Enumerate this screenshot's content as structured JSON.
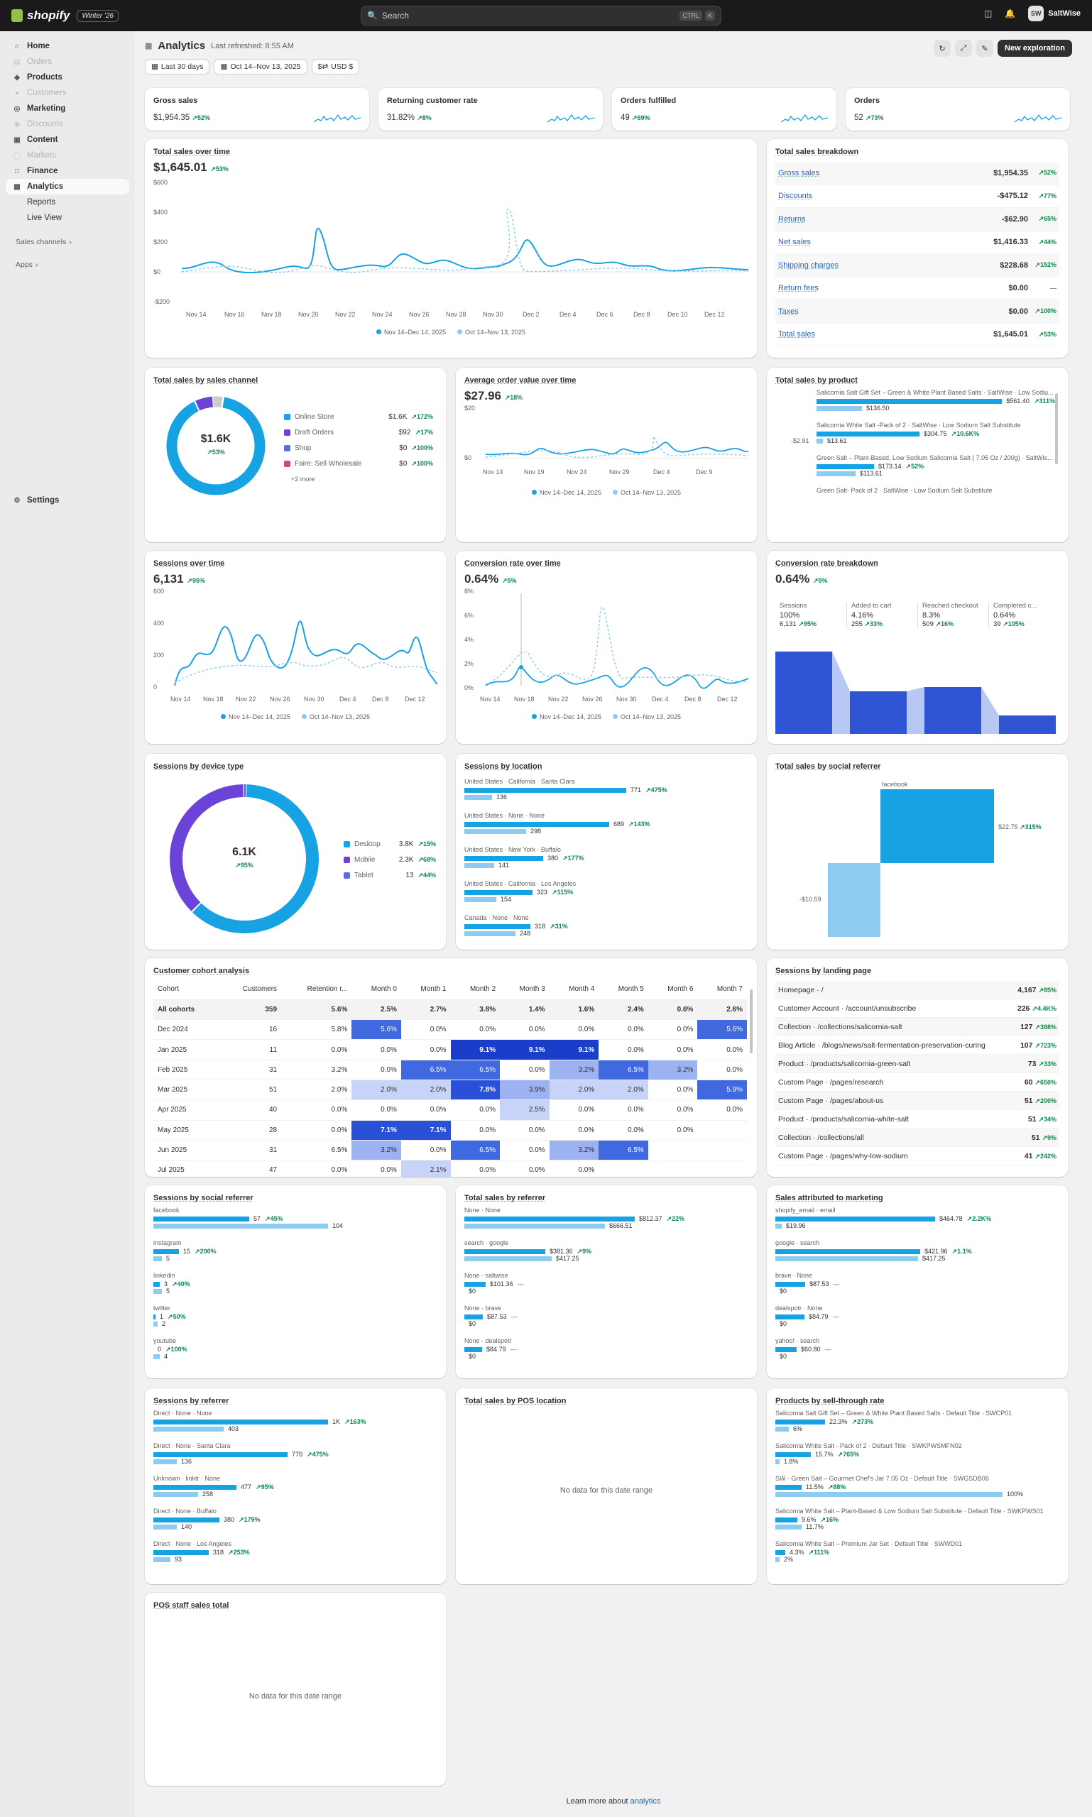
{
  "topbar": {
    "brand": "shopify",
    "edition": "Winter '26",
    "search_placeholder": "Search",
    "kbd1": "CTRL",
    "kbd2": "K",
    "store": "SaltWise",
    "store_initials": "SW"
  },
  "sidebar": {
    "items": [
      {
        "label": "Home",
        "icon": "home-icon",
        "dim": false
      },
      {
        "label": "Orders",
        "icon": "orders-icon",
        "dim": true
      },
      {
        "label": "Products",
        "icon": "tag-icon",
        "dim": false
      },
      {
        "label": "Customers",
        "icon": "person-icon",
        "dim": true
      },
      {
        "label": "Marketing",
        "icon": "target-icon",
        "dim": false
      },
      {
        "label": "Discounts",
        "icon": "discount-icon",
        "dim": true
      },
      {
        "label": "Content",
        "icon": "content-icon",
        "dim": false
      },
      {
        "label": "Markets",
        "icon": "globe-icon",
        "dim": true
      },
      {
        "label": "Finance",
        "icon": "bank-icon",
        "dim": false
      },
      {
        "label": "Analytics",
        "icon": "chart-icon",
        "dim": false,
        "active": true
      }
    ],
    "sub": [
      "Reports",
      "Live View"
    ],
    "sales_channels": "Sales channels",
    "apps": "Apps",
    "settings": "Settings"
  },
  "header": {
    "title": "Analytics",
    "refreshed": "Last refreshed: 8:55 AM",
    "new_exploration": "New exploration",
    "filter_period": "Last 30 days",
    "filter_compare": "Oct 14–Nov 13, 2025",
    "filter_currency": "USD $"
  },
  "kpis": [
    {
      "label": "Gross sales",
      "value": "$1,954.35",
      "change": "52%"
    },
    {
      "label": "Returning customer rate",
      "value": "31.82%",
      "change": "8%"
    },
    {
      "label": "Orders fulfilled",
      "value": "49",
      "change": "69%"
    },
    {
      "label": "Orders",
      "value": "52",
      "change": "73%"
    }
  ],
  "total_sales": {
    "title": "Total sales over time",
    "value": "$1,645.01",
    "change": "53%",
    "legend_current": "Nov 14–Dec 14, 2025",
    "legend_previous": "Oct 14–Nov 13, 2025"
  },
  "breakdown": {
    "title": "Total sales breakdown",
    "rows": [
      {
        "name": "Gross sales",
        "value": "$1,954.35",
        "change": "52%"
      },
      {
        "name": "Discounts",
        "value": "-$475.12",
        "change": "77%"
      },
      {
        "name": "Returns",
        "value": "-$62.90",
        "change": "65%"
      },
      {
        "name": "Net sales",
        "value": "$1,416.33",
        "change": "44%"
      },
      {
        "name": "Shipping charges",
        "value": "$228.68",
        "change": "152%"
      },
      {
        "name": "Return fees",
        "value": "$0.00",
        "change": "—"
      },
      {
        "name": "Taxes",
        "value": "$0.00",
        "change": "100%"
      },
      {
        "name": "Total sales",
        "value": "$1,645.01",
        "change": "53%"
      }
    ]
  },
  "by_channel": {
    "title": "Total sales by sales channel",
    "center": "$1.6K",
    "center_change": "53%",
    "more": "+2 more",
    "rows": [
      {
        "name": "Online Store",
        "value": "$1.6K",
        "change": "172%",
        "color": "#17a3e3"
      },
      {
        "name": "Draft Orders",
        "value": "$92",
        "change": "17%",
        "color": "#6b43d9"
      },
      {
        "name": "Shop",
        "value": "$0",
        "change": "100%",
        "color": "#5b6ee1"
      },
      {
        "name": "Faire: Sell Wholesale",
        "value": "$0",
        "change": "100%",
        "color": "#d1448a"
      }
    ]
  },
  "aov": {
    "title": "Average order value over time",
    "value": "$27.96",
    "change": "18%"
  },
  "by_product": {
    "title": "Total sales by product",
    "neg": "-$2.91",
    "rows": [
      {
        "name": "Salicornia Salt Gift Set – Green & White Plant Based Salts · SaltWise · Low Sodiu...",
        "v1": "$561.40",
        "c1": "311%",
        "v2": "$136.50",
        "w1": 0.92,
        "w2": 0.22
      },
      {
        "name": "Salicornia White Salt -Pack of 2 · SaltWise · Low Sodium Salt Substitute",
        "v1": "$304.75",
        "c1": "10.6K%",
        "v2": "$13.61",
        "w1": 0.5,
        "w2": 0.03
      },
      {
        "name": "Green Salt – Plant-Based, Low Sodium Salicornia Salt ( 7.05 Oz / 200g) · SaltWis...",
        "v1": "$173.14",
        "c1": "52%",
        "v2": "$113.61",
        "w1": 0.28,
        "w2": 0.19
      },
      {
        "name": "Green Salt- Pack of 2 · SaltWise · Low Sodium Salt Substitute",
        "v1": "",
        "c1": "",
        "v2": "",
        "w1": 0,
        "w2": 0
      }
    ]
  },
  "sessions": {
    "title": "Sessions over time",
    "value": "6,131",
    "change": "95%"
  },
  "conversion": {
    "title": "Conversion rate over time",
    "value": "0.64%",
    "change": "5%"
  },
  "funnel": {
    "title": "Conversion rate breakdown",
    "value": "0.64%",
    "change": "5%",
    "steps": [
      {
        "name": "Sessions",
        "pct": "100%",
        "count": "6,131",
        "change": "95%"
      },
      {
        "name": "Added to cart",
        "pct": "4.16%",
        "count": "255",
        "change": "33%"
      },
      {
        "name": "Reached checkout",
        "pct": "8.3%",
        "count": "509",
        "change": "16%"
      },
      {
        "name": "Completed c...",
        "pct": "0.64%",
        "count": "39",
        "change": "105%"
      }
    ]
  },
  "device": {
    "title": "Sessions by device type",
    "center": "6.1K",
    "center_change": "95%",
    "rows": [
      {
        "name": "Desktop",
        "value": "3.8K",
        "change": "15%",
        "color": "#17a3e3"
      },
      {
        "name": "Mobile",
        "value": "2.3K",
        "change": "68%",
        "color": "#6b43d9"
      },
      {
        "name": "Tablet",
        "value": "13",
        "change": "44%",
        "color": "#5b6ee1"
      }
    ]
  },
  "location": {
    "title": "Sessions by location",
    "rows": [
      {
        "name": "United States · California · Santa Clara",
        "v1": "771",
        "c1": "475%",
        "v2": "136",
        "w1": 0.76,
        "w2": 0.13
      },
      {
        "name": "United States · None · None",
        "v1": "689",
        "c1": "143%",
        "v2": "298",
        "w1": 0.68,
        "w2": 0.29
      },
      {
        "name": "United States · New York · Buffalo",
        "v1": "380",
        "c1": "177%",
        "v2": "141",
        "w1": 0.37,
        "w2": 0.14
      },
      {
        "name": "United States · California · Los Angeles",
        "v1": "323",
        "c1": "115%",
        "v2": "154",
        "w1": 0.32,
        "w2": 0.15
      },
      {
        "name": "Canada · None · None",
        "v1": "318",
        "c1": "31%",
        "v2": "248",
        "w1": 0.31,
        "w2": 0.24
      }
    ]
  },
  "social_sales": {
    "title": "Total sales by social referrer",
    "top_label": "facebook",
    "pos": "$22.75",
    "pos_change": "315%",
    "neg": "-$10.59"
  },
  "cohort": {
    "title": "Customer cohort analysis",
    "headers": [
      "Cohort",
      "Customers",
      "Retention r...",
      "Month 0",
      "Month 1",
      "Month 2",
      "Month 3",
      "Month 4",
      "Month 5",
      "Month 6",
      "Month 7"
    ],
    "rows": [
      [
        "All cohorts",
        "359",
        "5.6%",
        "2.5%",
        "2.7%",
        "3.8%",
        "1.4%",
        "1.6%",
        "2.4%",
        "0.6%",
        "2.6%"
      ],
      [
        "Dec 2024",
        "16",
        "5.8%",
        "5.6%",
        "0.0%",
        "0.0%",
        "0.0%",
        "0.0%",
        "0.0%",
        "0.0%",
        "5.6%"
      ],
      [
        "Jan 2025",
        "11",
        "0.0%",
        "0.0%",
        "0.0%",
        "9.1%",
        "9.1%",
        "9.1%",
        "0.0%",
        "0.0%",
        "0.0%"
      ],
      [
        "Feb 2025",
        "31",
        "3.2%",
        "0.0%",
        "6.5%",
        "6.5%",
        "0.0%",
        "3.2%",
        "6.5%",
        "3.2%",
        "0.0%"
      ],
      [
        "Mar 2025",
        "51",
        "2.0%",
        "2.0%",
        "2.0%",
        "7.8%",
        "3.9%",
        "2.0%",
        "2.0%",
        "0.0%",
        "5.9%"
      ],
      [
        "Apr 2025",
        "40",
        "0.0%",
        "0.0%",
        "0.0%",
        "0.0%",
        "2.5%",
        "0.0%",
        "0.0%",
        "0.0%",
        "0.0%"
      ],
      [
        "May 2025",
        "28",
        "0.0%",
        "7.1%",
        "7.1%",
        "0.0%",
        "0.0%",
        "0.0%",
        "0.0%",
        "0.0%",
        ""
      ],
      [
        "Jun 2025",
        "31",
        "6.5%",
        "3.2%",
        "0.0%",
        "6.5%",
        "0.0%",
        "3.2%",
        "6.5%",
        "",
        ""
      ],
      [
        "Jul 2025",
        "47",
        "0.0%",
        "0.0%",
        "2.1%",
        "0.0%",
        "0.0%",
        "0.0%",
        "",
        "",
        ""
      ]
    ]
  },
  "landing": {
    "title": "Sessions by landing page",
    "rows": [
      {
        "name": "Homepage · /",
        "value": "4,167",
        "change": "85%"
      },
      {
        "name": "Customer Account · /account/unsubscribe",
        "value": "226",
        "change": "4.4K%"
      },
      {
        "name": "Collection · /collections/salicornia-salt",
        "value": "127",
        "change": "388%"
      },
      {
        "name": "Blog Article · /blogs/news/salt-fermentation-preservation-curing",
        "value": "107",
        "change": "723%"
      },
      {
        "name": "Product · /products/salicornia-green-salt",
        "value": "73",
        "change": "33%"
      },
      {
        "name": "Custom Page · /pages/research",
        "value": "60",
        "change": "650%"
      },
      {
        "name": "Custom Page · /pages/about-us",
        "value": "51",
        "change": "200%"
      },
      {
        "name": "Product · /products/salicornia-white-salt",
        "value": "51",
        "change": "34%"
      },
      {
        "name": "Collection · /collections/all",
        "value": "51",
        "change": "9%"
      },
      {
        "name": "Custom Page · /pages/why-low-sodium",
        "value": "41",
        "change": "242%"
      }
    ]
  },
  "social_sessions": {
    "title": "Sessions by social referrer",
    "rows": [
      {
        "name": "facebook",
        "v1": "57",
        "c1": "45%",
        "v2": "104",
        "w1": 0.45,
        "w2": 0.82
      },
      {
        "name": "instagram",
        "v1": "15",
        "c1": "200%",
        "v2": "5",
        "w1": 0.12,
        "w2": 0.04
      },
      {
        "name": "linkedin",
        "v1": "3",
        "c1": "40%",
        "v2": "5",
        "w1": 0.03,
        "w2": 0.04
      },
      {
        "name": "twitter",
        "v1": "1",
        "c1": "50%",
        "v2": "2",
        "w1": 0.01,
        "w2": 0.02
      },
      {
        "name": "youtube",
        "v1": "0",
        "c1": "100%",
        "v2": "4",
        "w1": 0,
        "w2": 0.03
      }
    ]
  },
  "referrer_sales": {
    "title": "Total sales by referrer",
    "rows": [
      {
        "name": "None · None",
        "v1": "$812.37",
        "c1": "22%",
        "v2": "$666.51",
        "w1": 0.8,
        "w2": 0.66
      },
      {
        "name": "search · google",
        "v1": "$381.36",
        "c1": "9%",
        "v2": "$417.25",
        "w1": 0.38,
        "w2": 0.41
      },
      {
        "name": "None · saltwise",
        "v1": "$101.36",
        "c1": "—",
        "v2": "$0",
        "w1": 0.1,
        "w2": 0
      },
      {
        "name": "None · brave",
        "v1": "$87.53",
        "c1": "—",
        "v2": "$0",
        "w1": 0.087,
        "w2": 0
      },
      {
        "name": "None · dealspotr",
        "v1": "$84.79",
        "c1": "—",
        "v2": "$0",
        "w1": 0.084,
        "w2": 0
      }
    ]
  },
  "marketing": {
    "title": "Sales attributed to marketing",
    "rows": [
      {
        "name": "shopify_email · email",
        "v1": "$464.78",
        "c1": "2.2K%",
        "v2": "$19.96",
        "w1": 0.75,
        "w2": 0.03
      },
      {
        "name": "google · search",
        "v1": "$421.96",
        "c1": "1.1%",
        "v2": "$417.25",
        "w1": 0.68,
        "w2": 0.67
      },
      {
        "name": "brave · None",
        "v1": "$87.53",
        "c1": "—",
        "v2": "$0",
        "w1": 0.14,
        "w2": 0
      },
      {
        "name": "dealspotr · None",
        "v1": "$84.79",
        "c1": "—",
        "v2": "$0",
        "w1": 0.136,
        "w2": 0
      },
      {
        "name": "yahoo! · search",
        "v1": "$60.80",
        "c1": "—",
        "v2": "$0",
        "w1": 0.1,
        "w2": 0
      }
    ]
  },
  "sessions_ref": {
    "title": "Sessions by referrer",
    "rows": [
      {
        "name": "Direct · None · None",
        "v1": "1K",
        "c1": "163%",
        "v2": "403",
        "w1": 0.82,
        "w2": 0.33
      },
      {
        "name": "Direct · None · Santa Clara",
        "v1": "770",
        "c1": "475%",
        "v2": "136",
        "w1": 0.63,
        "w2": 0.11
      },
      {
        "name": "Unknown · linktr · None",
        "v1": "477",
        "c1": "95%",
        "v2": "258",
        "w1": 0.39,
        "w2": 0.21
      },
      {
        "name": "Direct · None · Buffalo",
        "v1": "380",
        "c1": "179%",
        "v2": "140",
        "w1": 0.31,
        "w2": 0.11
      },
      {
        "name": "Direct · None · Los Angeles",
        "v1": "318",
        "c1": "253%",
        "v2": "93",
        "w1": 0.26,
        "w2": 0.08
      }
    ]
  },
  "pos_location": {
    "title": "Total sales by POS location",
    "empty": "No data for this date range"
  },
  "sell_through": {
    "title": "Products by sell-through rate",
    "rows": [
      {
        "name": "Salicornia Salt Gift Set – Green & White Plant Based Salts · Default Title · SWCP01",
        "v1": "22.3%",
        "c1": "273%",
        "v2": "6%",
        "w1": 0.22,
        "w2": 0.06
      },
      {
        "name": "Salicornia White Salt - Pack of 2 · Default Title · SWKPWSMFN02",
        "v1": "15.7%",
        "c1": "765%",
        "v2": "1.8%",
        "w1": 0.157,
        "w2": 0.018
      },
      {
        "name": "SW - Green Salt – Gourmet Chef's Jar 7.05 Oz · Default Title · SWGSDB06",
        "v1": "11.5%",
        "c1": "88%",
        "v2": "100%",
        "w1": 0.115,
        "w2": 1
      },
      {
        "name": "Salicornia White Salt – Plant-Based & Low Sodium Salt Substitute · Default Title · SWKPWS01",
        "v1": "9.6%",
        "c1": "16%",
        "v2": "11.7%",
        "w1": 0.096,
        "w2": 0.117
      },
      {
        "name": "Salicornia White Salt – Premium Jar Set · Default Title · SWWD01",
        "v1": "4.3%",
        "c1": "111%",
        "v2": "2%",
        "w1": 0.043,
        "w2": 0.02
      }
    ]
  },
  "pos_staff": {
    "title": "POS staff sales total",
    "empty": "No data for this date range"
  },
  "footer": {
    "text": "Learn more about ",
    "link": "analytics"
  },
  "colors": {
    "accent": "#17a3e3",
    "accent_light": "#8ecbf0",
    "purple": "#6b43d9",
    "positive": "#0a8a4a",
    "link": "#2e60b8"
  }
}
